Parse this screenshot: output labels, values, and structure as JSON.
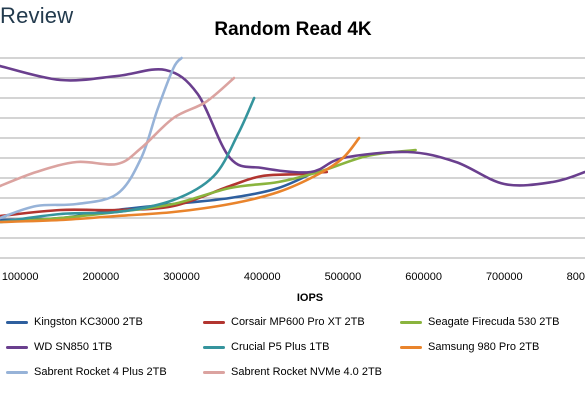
{
  "brand": {
    "text": "Review"
  },
  "chart_data": {
    "type": "line",
    "title": "Random Read 4K",
    "xlabel": "IOPS",
    "ylabel": "",
    "xlim": [
      75000,
      800000
    ],
    "ylim": [
      0,
      10
    ],
    "x_tick_labels": [
      "100000",
      "200000",
      "300000",
      "400000",
      "500000",
      "600000",
      "700000",
      "800000"
    ],
    "x_ticks": [
      100000,
      200000,
      300000,
      400000,
      500000,
      600000,
      700000,
      800000
    ],
    "grid": true,
    "legend_position": "bottom",
    "series": [
      {
        "name": "Kingston KC3000 2TB",
        "color": "#2e5f9e",
        "x": [
          75000,
          150000,
          220000,
          290000,
          360000,
          420000,
          470000
        ],
        "y": [
          1.9,
          2.0,
          2.4,
          2.7,
          3.0,
          3.5,
          4.4
        ]
      },
      {
        "name": "Corsair MP600 Pro XT 2TB",
        "color": "#b23530",
        "x": [
          75000,
          150000,
          220000,
          290000,
          360000,
          400000,
          450000,
          480000
        ],
        "y": [
          2.1,
          2.4,
          2.4,
          2.6,
          3.6,
          4.1,
          4.2,
          4.3
        ]
      },
      {
        "name": "Seagate Firecuda 530 2TB",
        "color": "#8ab43e",
        "x": [
          75000,
          150000,
          220000,
          290000,
          360000,
          420000,
          470000,
          530000,
          590000
        ],
        "y": [
          1.8,
          2.0,
          2.3,
          2.7,
          3.5,
          3.8,
          4.3,
          5.1,
          5.4
        ]
      },
      {
        "name": "WD SN850 1TB",
        "color": "#6a3f8e",
        "x": [
          75000,
          150000,
          220000,
          280000,
          320000,
          360000,
          400000,
          460000,
          500000,
          580000,
          640000,
          700000,
          760000,
          800000
        ],
        "y": [
          9.6,
          8.9,
          9.1,
          9.4,
          8.2,
          5.0,
          4.5,
          4.3,
          5.0,
          5.3,
          4.8,
          3.7,
          3.8,
          4.3
        ]
      },
      {
        "name": "Crucial P5 Plus 1TB",
        "color": "#35949d",
        "x": [
          75000,
          150000,
          220000,
          290000,
          340000,
          370000,
          390000
        ],
        "y": [
          1.8,
          2.2,
          2.3,
          2.9,
          4.1,
          6.2,
          8.0
        ]
      },
      {
        "name": "Samsung 980 Pro 2TB",
        "color": "#e9842c",
        "x": [
          75000,
          150000,
          220000,
          290000,
          360000,
          420000,
          470000,
          500000,
          520000
        ],
        "y": [
          1.8,
          1.9,
          2.1,
          2.3,
          2.7,
          3.3,
          4.2,
          5.0,
          6.0
        ]
      },
      {
        "name": "Sabrent Rocket 4 Plus 2TB",
        "color": "#97b3d8",
        "x": [
          75000,
          120000,
          170000,
          220000,
          250000,
          270000,
          290000,
          300000
        ],
        "y": [
          2.0,
          2.6,
          2.7,
          3.2,
          5.0,
          7.4,
          9.5,
          10.0
        ]
      },
      {
        "name": "Sabrent Rocket NVMe 4.0 2TB",
        "color": "#dba3a0",
        "x": [
          75000,
          120000,
          170000,
          220000,
          250000,
          290000,
          330000,
          365000
        ],
        "y": [
          3.6,
          4.3,
          4.8,
          4.7,
          5.5,
          7.0,
          7.8,
          9.0
        ]
      }
    ]
  }
}
